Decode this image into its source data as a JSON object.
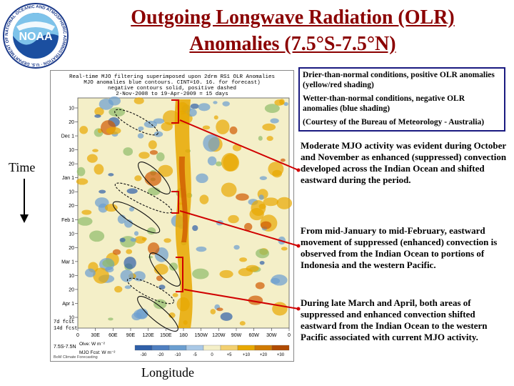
{
  "title": {
    "line1": "Outgoing Longwave Radiation (OLR)",
    "line2": "Anomalies (7.5°S-7.5°N)"
  },
  "logo": {
    "text": "NOAA",
    "ring_text": "NATIONAL OCEANIC AND ATMOSPHERIC ADMINISTRATION · U.S. DEPARTMENT OF COMMERCE"
  },
  "axis": {
    "y_label": "Time",
    "x_label": "Longitude"
  },
  "legend": {
    "dry": "Drier-than-normal conditions, positive OLR anomalies (yellow/red shading)",
    "wet": "Wetter-than-normal conditions, negative OLR anomalies (blue shading)",
    "credit": "(Courtesy of the Bureau of Meteorology - Australia)"
  },
  "paragraphs": [
    "Moderate MJO activity was evident during October and November as enhanced (suppressed) convection developed across the Indian Ocean and shifted eastward during the period.",
    "From mid-January to mid-February, eastward movement of suppressed (enhanced) convection is observed from the Indian Ocean to portions of Indonesia and the western Pacific.",
    "During late March and April, both areas of suppressed and enhanced convection shifted eastward from the Indian Ocean to the western Pacific associated with current MJO activity."
  ],
  "plot": {
    "header_line1": "Real-time MJO filtering superimposed upon 2drm RS1 OLR Anomalies",
    "header_line2": "MJO anomalies blue contours. CINT=10. 16. for forecast)",
    "header_line3": "negative contours solid, positive dashed",
    "header_line4": "2-Nov-2008 to 19-Apr-2009 = 15 days",
    "y_ticks": [
      "10",
      "20",
      "Dec 1",
      "10",
      "20",
      "Jan 1",
      "10",
      "20",
      "Feb 1",
      "10",
      "20",
      "Mar 1",
      "10",
      "20",
      "Apr 1",
      "10"
    ],
    "fcst_labels": [
      "7d fcst",
      "14d fcst"
    ],
    "x_ticks": [
      "0",
      "30E",
      "60E",
      "90E",
      "120E",
      "150E",
      "180",
      "150W",
      "120W",
      "90W",
      "60W",
      "30W",
      "0"
    ],
    "colorbar_left_labels": [
      "Olve: W m⁻²",
      "MJO Fcst: W m⁻²"
    ],
    "colorbar_ticks": [
      "-30",
      "-20",
      "-10",
      "-5",
      "0",
      "+5",
      "+10",
      "+20",
      "+30"
    ],
    "footer_left": "7.5S-7.5N",
    "footer_credit": "BoM Climate Forecasting",
    "colors": {
      "dry": "#e8a800",
      "very_dry": "#d05a00",
      "wet": "#6b9ed0",
      "very_wet": "#2f5fa8",
      "neutral": "#f4efc8"
    }
  }
}
